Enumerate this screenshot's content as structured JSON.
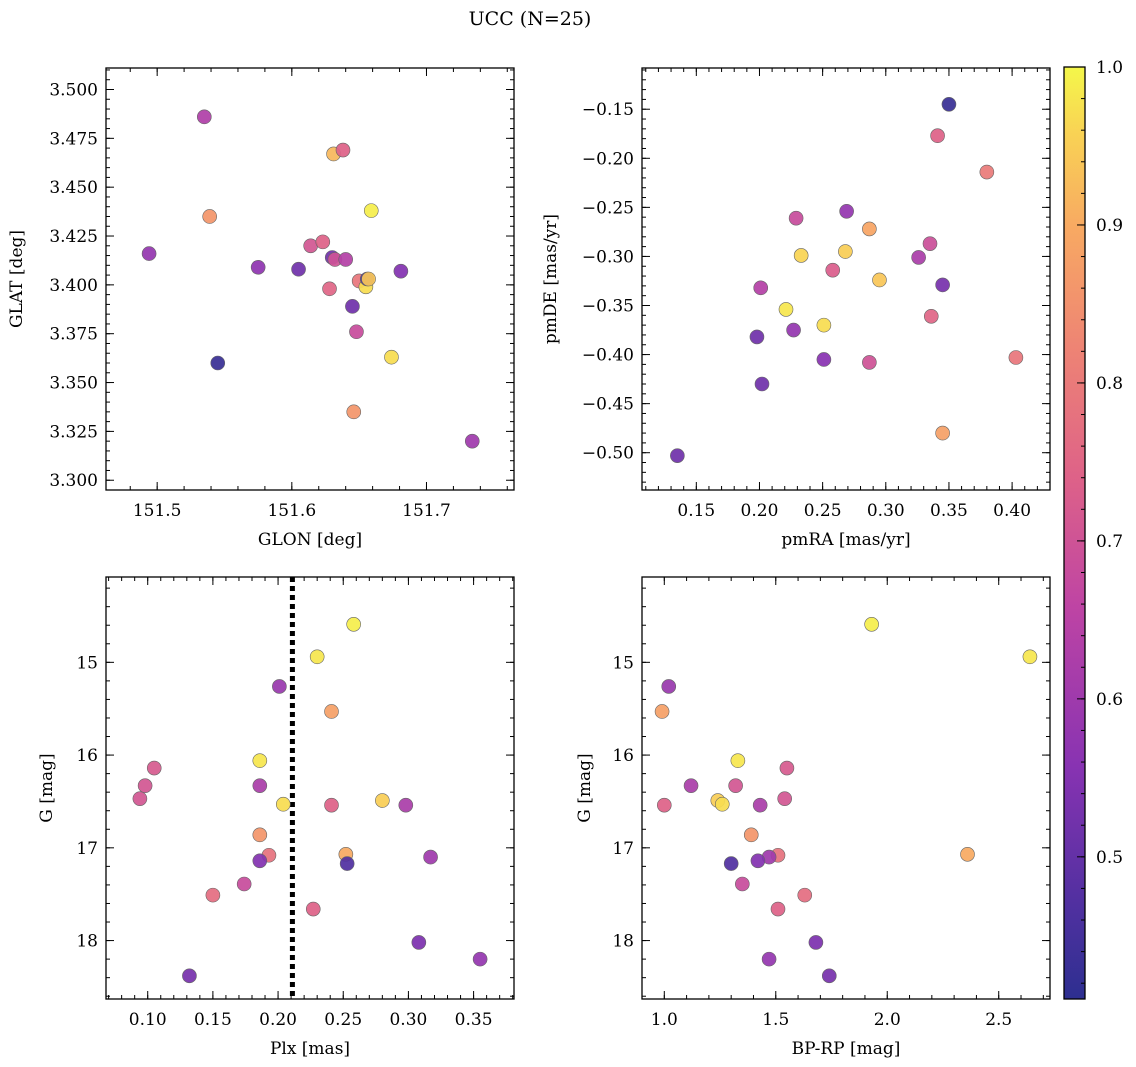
{
  "figure": {
    "title": "UCC (N=25)"
  },
  "colorbar": {
    "cmap": "plasma",
    "range": [
      0.41,
      1.0
    ],
    "ticks": [
      0.5,
      0.6,
      0.7,
      0.8,
      0.9,
      1.0
    ],
    "tick_labels": [
      "0.5",
      "0.6",
      "0.7",
      "0.8",
      "0.9",
      "1.0"
    ]
  },
  "chart_data": [
    {
      "type": "scatter",
      "id": "glon-glat",
      "title": "",
      "xlabel": "GLON [deg]",
      "ylabel": "GLAT [deg]",
      "xlim": [
        151.462,
        151.765
      ],
      "ylim": [
        3.295,
        3.511
      ],
      "invert_y": false,
      "xticks": [
        151.5,
        151.6,
        151.7
      ],
      "xtick_labels": [
        "151.5",
        "151.6",
        "151.7"
      ],
      "yticks": [
        3.3,
        3.325,
        3.35,
        3.375,
        3.4,
        3.425,
        3.45,
        3.475,
        3.5
      ],
      "ytick_labels": [
        "3.300",
        "3.325",
        "3.350",
        "3.375",
        "3.400",
        "3.425",
        "3.450",
        "3.475",
        "3.500"
      ],
      "points": [
        {
          "x": 151.535,
          "y": 3.486,
          "c": 0.63
        },
        {
          "x": 151.494,
          "y": 3.416,
          "c": 0.58
        },
        {
          "x": 151.539,
          "y": 3.435,
          "c": 0.86
        },
        {
          "x": 151.545,
          "y": 3.36,
          "c": 0.43
        },
        {
          "x": 151.575,
          "y": 3.409,
          "c": 0.57
        },
        {
          "x": 151.605,
          "y": 3.408,
          "c": 0.52
        },
        {
          "x": 151.614,
          "y": 3.42,
          "c": 0.71
        },
        {
          "x": 151.623,
          "y": 3.422,
          "c": 0.74
        },
        {
          "x": 151.628,
          "y": 3.398,
          "c": 0.75
        },
        {
          "x": 151.63,
          "y": 3.414,
          "c": 0.52
        },
        {
          "x": 151.632,
          "y": 3.413,
          "c": 0.7
        },
        {
          "x": 151.631,
          "y": 3.467,
          "c": 0.92
        },
        {
          "x": 151.638,
          "y": 3.469,
          "c": 0.74
        },
        {
          "x": 151.64,
          "y": 3.413,
          "c": 0.64
        },
        {
          "x": 151.645,
          "y": 3.389,
          "c": 0.52
        },
        {
          "x": 151.648,
          "y": 3.376,
          "c": 0.68
        },
        {
          "x": 151.65,
          "y": 3.402,
          "c": 0.79
        },
        {
          "x": 151.655,
          "y": 3.399,
          "c": 0.97
        },
        {
          "x": 151.656,
          "y": 3.403,
          "c": 0.46
        },
        {
          "x": 151.657,
          "y": 3.403,
          "c": 0.94
        },
        {
          "x": 151.659,
          "y": 3.438,
          "c": 0.99
        },
        {
          "x": 151.646,
          "y": 3.335,
          "c": 0.86
        },
        {
          "x": 151.674,
          "y": 3.363,
          "c": 0.97
        },
        {
          "x": 151.681,
          "y": 3.407,
          "c": 0.55
        },
        {
          "x": 151.734,
          "y": 3.32,
          "c": 0.6
        }
      ]
    },
    {
      "type": "scatter",
      "id": "pmra-pmde",
      "title": "",
      "xlabel": "pmRA [mas/yr]",
      "ylabel": "pmDE [mas/yr]",
      "xlim": [
        0.107,
        0.43
      ],
      "ylim": [
        -0.538,
        -0.108
      ],
      "invert_y": false,
      "xticks": [
        0.15,
        0.2,
        0.25,
        0.3,
        0.35,
        0.4
      ],
      "xtick_labels": [
        "0.15",
        "0.20",
        "0.25",
        "0.30",
        "0.35",
        "0.40"
      ],
      "yticks": [
        -0.5,
        -0.45,
        -0.4,
        -0.35,
        -0.3,
        -0.25,
        -0.2,
        -0.15
      ],
      "ytick_labels": [
        "−0.50",
        "−0.45",
        "−0.40",
        "−0.35",
        "−0.30",
        "−0.25",
        "−0.20",
        "−0.15"
      ],
      "points": [
        {
          "x": 0.35,
          "y": -0.145,
          "c": 0.43
        },
        {
          "x": 0.341,
          "y": -0.177,
          "c": 0.74
        },
        {
          "x": 0.38,
          "y": -0.214,
          "c": 0.8
        },
        {
          "x": 0.229,
          "y": -0.261,
          "c": 0.68
        },
        {
          "x": 0.269,
          "y": -0.254,
          "c": 0.58
        },
        {
          "x": 0.287,
          "y": -0.272,
          "c": 0.89
        },
        {
          "x": 0.335,
          "y": -0.287,
          "c": 0.69
        },
        {
          "x": 0.268,
          "y": -0.295,
          "c": 0.95
        },
        {
          "x": 0.233,
          "y": -0.299,
          "c": 0.96
        },
        {
          "x": 0.326,
          "y": -0.301,
          "c": 0.62
        },
        {
          "x": 0.258,
          "y": -0.314,
          "c": 0.73
        },
        {
          "x": 0.295,
          "y": -0.324,
          "c": 0.94
        },
        {
          "x": 0.345,
          "y": -0.329,
          "c": 0.53
        },
        {
          "x": 0.201,
          "y": -0.332,
          "c": 0.64
        },
        {
          "x": 0.221,
          "y": -0.354,
          "c": 0.98
        },
        {
          "x": 0.336,
          "y": -0.361,
          "c": 0.75
        },
        {
          "x": 0.251,
          "y": -0.37,
          "c": 0.97
        },
        {
          "x": 0.227,
          "y": -0.375,
          "c": 0.58
        },
        {
          "x": 0.198,
          "y": -0.382,
          "c": 0.52
        },
        {
          "x": 0.251,
          "y": -0.405,
          "c": 0.56
        },
        {
          "x": 0.287,
          "y": -0.408,
          "c": 0.7
        },
        {
          "x": 0.403,
          "y": -0.403,
          "c": 0.79
        },
        {
          "x": 0.202,
          "y": -0.43,
          "c": 0.52
        },
        {
          "x": 0.345,
          "y": -0.48,
          "c": 0.88
        },
        {
          "x": 0.135,
          "y": -0.503,
          "c": 0.52
        }
      ]
    },
    {
      "type": "scatter",
      "id": "plx-g",
      "title": "",
      "xlabel": "Plx [mas]",
      "ylabel": "G [mag]",
      "xlim": [
        0.068,
        0.381
      ],
      "ylim": [
        14.08,
        18.63
      ],
      "invert_y": true,
      "vline": {
        "x": 0.211,
        "style": "dotted"
      },
      "xticks": [
        0.1,
        0.15,
        0.2,
        0.25,
        0.3,
        0.35
      ],
      "xtick_labels": [
        "0.10",
        "0.15",
        "0.20",
        "0.25",
        "0.30",
        "0.35"
      ],
      "yticks": [
        15,
        16,
        17,
        18
      ],
      "ytick_labels": [
        "15",
        "16",
        "17",
        "18"
      ],
      "points": [
        {
          "x": 0.258,
          "y": 14.59,
          "c": 0.99
        },
        {
          "x": 0.23,
          "y": 14.94,
          "c": 0.98
        },
        {
          "x": 0.201,
          "y": 15.26,
          "c": 0.59
        },
        {
          "x": 0.241,
          "y": 15.53,
          "c": 0.88
        },
        {
          "x": 0.186,
          "y": 16.06,
          "c": 0.98
        },
        {
          "x": 0.105,
          "y": 16.14,
          "c": 0.72
        },
        {
          "x": 0.098,
          "y": 16.33,
          "c": 0.71
        },
        {
          "x": 0.186,
          "y": 16.33,
          "c": 0.62
        },
        {
          "x": 0.094,
          "y": 16.47,
          "c": 0.71
        },
        {
          "x": 0.28,
          "y": 16.49,
          "c": 0.95
        },
        {
          "x": 0.204,
          "y": 16.53,
          "c": 0.97
        },
        {
          "x": 0.241,
          "y": 16.54,
          "c": 0.74
        },
        {
          "x": 0.298,
          "y": 16.54,
          "c": 0.62
        },
        {
          "x": 0.186,
          "y": 16.86,
          "c": 0.86
        },
        {
          "x": 0.252,
          "y": 17.07,
          "c": 0.9
        },
        {
          "x": 0.317,
          "y": 17.1,
          "c": 0.6
        },
        {
          "x": 0.193,
          "y": 17.08,
          "c": 0.78
        },
        {
          "x": 0.186,
          "y": 17.14,
          "c": 0.55
        },
        {
          "x": 0.253,
          "y": 17.17,
          "c": 0.47
        },
        {
          "x": 0.174,
          "y": 17.39,
          "c": 0.68
        },
        {
          "x": 0.15,
          "y": 17.51,
          "c": 0.77
        },
        {
          "x": 0.227,
          "y": 17.66,
          "c": 0.74
        },
        {
          "x": 0.308,
          "y": 18.02,
          "c": 0.54
        },
        {
          "x": 0.355,
          "y": 18.2,
          "c": 0.58
        },
        {
          "x": 0.132,
          "y": 18.38,
          "c": 0.53
        }
      ]
    },
    {
      "type": "scatter",
      "id": "bprp-g",
      "title": "",
      "xlabel": "BP-RP [mag]",
      "ylabel": "G [mag]",
      "xlim": [
        0.9,
        2.73
      ],
      "ylim": [
        14.08,
        18.63
      ],
      "invert_y": true,
      "xticks": [
        1.0,
        1.5,
        2.0,
        2.5
      ],
      "xtick_labels": [
        "1.0",
        "1.5",
        "2.0",
        "2.5"
      ],
      "yticks": [
        15,
        16,
        17,
        18
      ],
      "ytick_labels": [
        "15",
        "16",
        "17",
        "18"
      ],
      "points": [
        {
          "x": 1.93,
          "y": 14.59,
          "c": 0.99
        },
        {
          "x": 2.64,
          "y": 14.94,
          "c": 0.98
        },
        {
          "x": 1.02,
          "y": 15.26,
          "c": 0.59
        },
        {
          "x": 0.99,
          "y": 15.53,
          "c": 0.88
        },
        {
          "x": 1.33,
          "y": 16.06,
          "c": 0.98
        },
        {
          "x": 1.55,
          "y": 16.14,
          "c": 0.72
        },
        {
          "x": 1.12,
          "y": 16.33,
          "c": 0.62
        },
        {
          "x": 1.32,
          "y": 16.33,
          "c": 0.71
        },
        {
          "x": 1.54,
          "y": 16.47,
          "c": 0.71
        },
        {
          "x": 1.24,
          "y": 16.49,
          "c": 0.95
        },
        {
          "x": 1.26,
          "y": 16.53,
          "c": 0.97
        },
        {
          "x": 1.0,
          "y": 16.54,
          "c": 0.74
        },
        {
          "x": 1.43,
          "y": 16.54,
          "c": 0.62
        },
        {
          "x": 1.39,
          "y": 16.86,
          "c": 0.86
        },
        {
          "x": 2.36,
          "y": 17.07,
          "c": 0.9
        },
        {
          "x": 1.51,
          "y": 17.08,
          "c": 0.78
        },
        {
          "x": 1.47,
          "y": 17.1,
          "c": 0.6
        },
        {
          "x": 1.42,
          "y": 17.14,
          "c": 0.55
        },
        {
          "x": 1.3,
          "y": 17.17,
          "c": 0.47
        },
        {
          "x": 1.35,
          "y": 17.39,
          "c": 0.68
        },
        {
          "x": 1.63,
          "y": 17.51,
          "c": 0.77
        },
        {
          "x": 1.51,
          "y": 17.66,
          "c": 0.74
        },
        {
          "x": 1.68,
          "y": 18.02,
          "c": 0.54
        },
        {
          "x": 1.47,
          "y": 18.2,
          "c": 0.58
        },
        {
          "x": 1.74,
          "y": 18.38,
          "c": 0.53
        }
      ]
    }
  ]
}
